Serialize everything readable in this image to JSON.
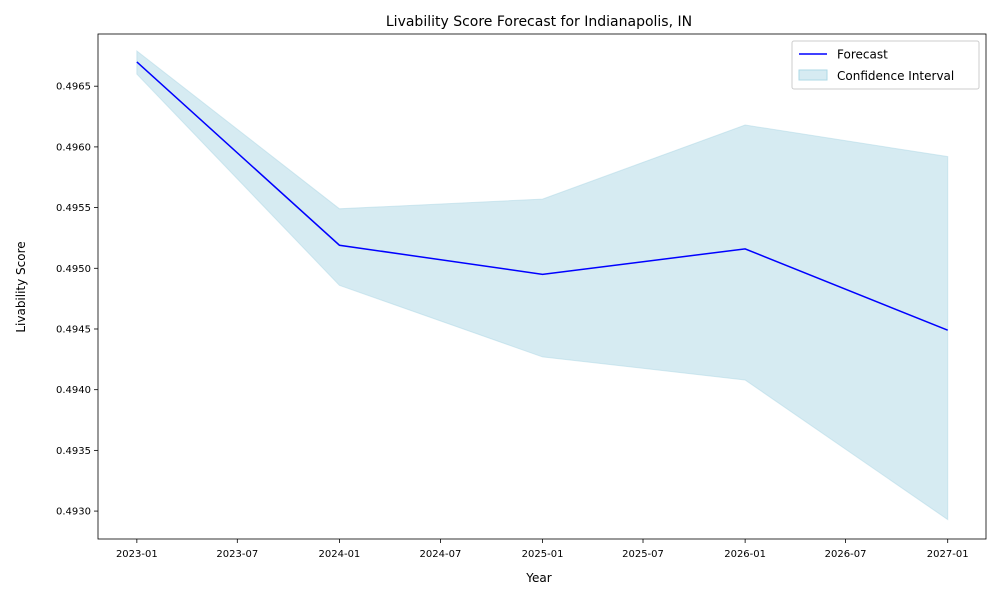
{
  "chart_data": {
    "type": "line",
    "title": "Livability Score Forecast for Indianapolis, IN",
    "xlabel": "Year",
    "ylabel": "Livability Score",
    "x": [
      "2023-01-01",
      "2024-01-01",
      "2025-01-01",
      "2026-01-01",
      "2027-01-01"
    ],
    "series": [
      {
        "name": "Forecast",
        "values": [
          0.4967,
          0.49519,
          0.49495,
          0.49516,
          0.49449
        ],
        "color": "#0000ff"
      }
    ],
    "confidence_interval": {
      "name": "Confidence Interval",
      "lower": [
        0.4966,
        0.49486,
        0.49427,
        0.49408,
        0.49293
      ],
      "upper": [
        0.49679,
        0.49549,
        0.49557,
        0.49618,
        0.49592
      ],
      "color": "#add8e6"
    },
    "xlim": [
      "2022-10-23",
      "2027-03-11"
    ],
    "ylim": [
      0.49277,
      0.49693
    ],
    "x_ticks": [
      "2023-01",
      "2023-07",
      "2024-01",
      "2024-07",
      "2025-01",
      "2025-07",
      "2026-01",
      "2026-07",
      "2027-01"
    ],
    "y_ticks": [
      "0.4930",
      "0.4935",
      "0.4940",
      "0.4945",
      "0.4950",
      "0.4955",
      "0.4960",
      "0.4965"
    ],
    "grid": false,
    "legend_position": "top-right"
  }
}
